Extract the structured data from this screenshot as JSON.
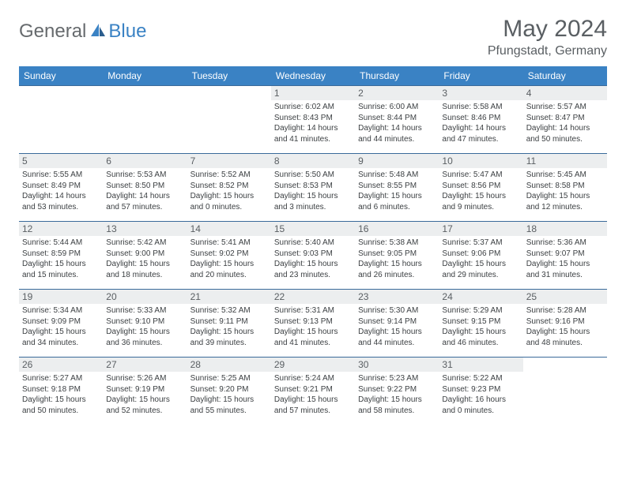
{
  "logo": {
    "general": "General",
    "blue": "Blue"
  },
  "title": "May 2024",
  "location": "Pfungstadt, Germany",
  "weekdays": [
    "Sunday",
    "Monday",
    "Tuesday",
    "Wednesday",
    "Thursday",
    "Friday",
    "Saturday"
  ],
  "colors": {
    "header_bg": "#3a82c4",
    "header_text": "#ffffff",
    "daynum_bg": "#eceeef",
    "text": "#5a5f63",
    "border": "#3a6a9a"
  },
  "startOffset": 3,
  "days": [
    {
      "n": "1",
      "sunrise": "Sunrise: 6:02 AM",
      "sunset": "Sunset: 8:43 PM",
      "day1": "Daylight: 14 hours",
      "day2": "and 41 minutes."
    },
    {
      "n": "2",
      "sunrise": "Sunrise: 6:00 AM",
      "sunset": "Sunset: 8:44 PM",
      "day1": "Daylight: 14 hours",
      "day2": "and 44 minutes."
    },
    {
      "n": "3",
      "sunrise": "Sunrise: 5:58 AM",
      "sunset": "Sunset: 8:46 PM",
      "day1": "Daylight: 14 hours",
      "day2": "and 47 minutes."
    },
    {
      "n": "4",
      "sunrise": "Sunrise: 5:57 AM",
      "sunset": "Sunset: 8:47 PM",
      "day1": "Daylight: 14 hours",
      "day2": "and 50 minutes."
    },
    {
      "n": "5",
      "sunrise": "Sunrise: 5:55 AM",
      "sunset": "Sunset: 8:49 PM",
      "day1": "Daylight: 14 hours",
      "day2": "and 53 minutes."
    },
    {
      "n": "6",
      "sunrise": "Sunrise: 5:53 AM",
      "sunset": "Sunset: 8:50 PM",
      "day1": "Daylight: 14 hours",
      "day2": "and 57 minutes."
    },
    {
      "n": "7",
      "sunrise": "Sunrise: 5:52 AM",
      "sunset": "Sunset: 8:52 PM",
      "day1": "Daylight: 15 hours",
      "day2": "and 0 minutes."
    },
    {
      "n": "8",
      "sunrise": "Sunrise: 5:50 AM",
      "sunset": "Sunset: 8:53 PM",
      "day1": "Daylight: 15 hours",
      "day2": "and 3 minutes."
    },
    {
      "n": "9",
      "sunrise": "Sunrise: 5:48 AM",
      "sunset": "Sunset: 8:55 PM",
      "day1": "Daylight: 15 hours",
      "day2": "and 6 minutes."
    },
    {
      "n": "10",
      "sunrise": "Sunrise: 5:47 AM",
      "sunset": "Sunset: 8:56 PM",
      "day1": "Daylight: 15 hours",
      "day2": "and 9 minutes."
    },
    {
      "n": "11",
      "sunrise": "Sunrise: 5:45 AM",
      "sunset": "Sunset: 8:58 PM",
      "day1": "Daylight: 15 hours",
      "day2": "and 12 minutes."
    },
    {
      "n": "12",
      "sunrise": "Sunrise: 5:44 AM",
      "sunset": "Sunset: 8:59 PM",
      "day1": "Daylight: 15 hours",
      "day2": "and 15 minutes."
    },
    {
      "n": "13",
      "sunrise": "Sunrise: 5:42 AM",
      "sunset": "Sunset: 9:00 PM",
      "day1": "Daylight: 15 hours",
      "day2": "and 18 minutes."
    },
    {
      "n": "14",
      "sunrise": "Sunrise: 5:41 AM",
      "sunset": "Sunset: 9:02 PM",
      "day1": "Daylight: 15 hours",
      "day2": "and 20 minutes."
    },
    {
      "n": "15",
      "sunrise": "Sunrise: 5:40 AM",
      "sunset": "Sunset: 9:03 PM",
      "day1": "Daylight: 15 hours",
      "day2": "and 23 minutes."
    },
    {
      "n": "16",
      "sunrise": "Sunrise: 5:38 AM",
      "sunset": "Sunset: 9:05 PM",
      "day1": "Daylight: 15 hours",
      "day2": "and 26 minutes."
    },
    {
      "n": "17",
      "sunrise": "Sunrise: 5:37 AM",
      "sunset": "Sunset: 9:06 PM",
      "day1": "Daylight: 15 hours",
      "day2": "and 29 minutes."
    },
    {
      "n": "18",
      "sunrise": "Sunrise: 5:36 AM",
      "sunset": "Sunset: 9:07 PM",
      "day1": "Daylight: 15 hours",
      "day2": "and 31 minutes."
    },
    {
      "n": "19",
      "sunrise": "Sunrise: 5:34 AM",
      "sunset": "Sunset: 9:09 PM",
      "day1": "Daylight: 15 hours",
      "day2": "and 34 minutes."
    },
    {
      "n": "20",
      "sunrise": "Sunrise: 5:33 AM",
      "sunset": "Sunset: 9:10 PM",
      "day1": "Daylight: 15 hours",
      "day2": "and 36 minutes."
    },
    {
      "n": "21",
      "sunrise": "Sunrise: 5:32 AM",
      "sunset": "Sunset: 9:11 PM",
      "day1": "Daylight: 15 hours",
      "day2": "and 39 minutes."
    },
    {
      "n": "22",
      "sunrise": "Sunrise: 5:31 AM",
      "sunset": "Sunset: 9:13 PM",
      "day1": "Daylight: 15 hours",
      "day2": "and 41 minutes."
    },
    {
      "n": "23",
      "sunrise": "Sunrise: 5:30 AM",
      "sunset": "Sunset: 9:14 PM",
      "day1": "Daylight: 15 hours",
      "day2": "and 44 minutes."
    },
    {
      "n": "24",
      "sunrise": "Sunrise: 5:29 AM",
      "sunset": "Sunset: 9:15 PM",
      "day1": "Daylight: 15 hours",
      "day2": "and 46 minutes."
    },
    {
      "n": "25",
      "sunrise": "Sunrise: 5:28 AM",
      "sunset": "Sunset: 9:16 PM",
      "day1": "Daylight: 15 hours",
      "day2": "and 48 minutes."
    },
    {
      "n": "26",
      "sunrise": "Sunrise: 5:27 AM",
      "sunset": "Sunset: 9:18 PM",
      "day1": "Daylight: 15 hours",
      "day2": "and 50 minutes."
    },
    {
      "n": "27",
      "sunrise": "Sunrise: 5:26 AM",
      "sunset": "Sunset: 9:19 PM",
      "day1": "Daylight: 15 hours",
      "day2": "and 52 minutes."
    },
    {
      "n": "28",
      "sunrise": "Sunrise: 5:25 AM",
      "sunset": "Sunset: 9:20 PM",
      "day1": "Daylight: 15 hours",
      "day2": "and 55 minutes."
    },
    {
      "n": "29",
      "sunrise": "Sunrise: 5:24 AM",
      "sunset": "Sunset: 9:21 PM",
      "day1": "Daylight: 15 hours",
      "day2": "and 57 minutes."
    },
    {
      "n": "30",
      "sunrise": "Sunrise: 5:23 AM",
      "sunset": "Sunset: 9:22 PM",
      "day1": "Daylight: 15 hours",
      "day2": "and 58 minutes."
    },
    {
      "n": "31",
      "sunrise": "Sunrise: 5:22 AM",
      "sunset": "Sunset: 9:23 PM",
      "day1": "Daylight: 16 hours",
      "day2": "and 0 minutes."
    }
  ]
}
